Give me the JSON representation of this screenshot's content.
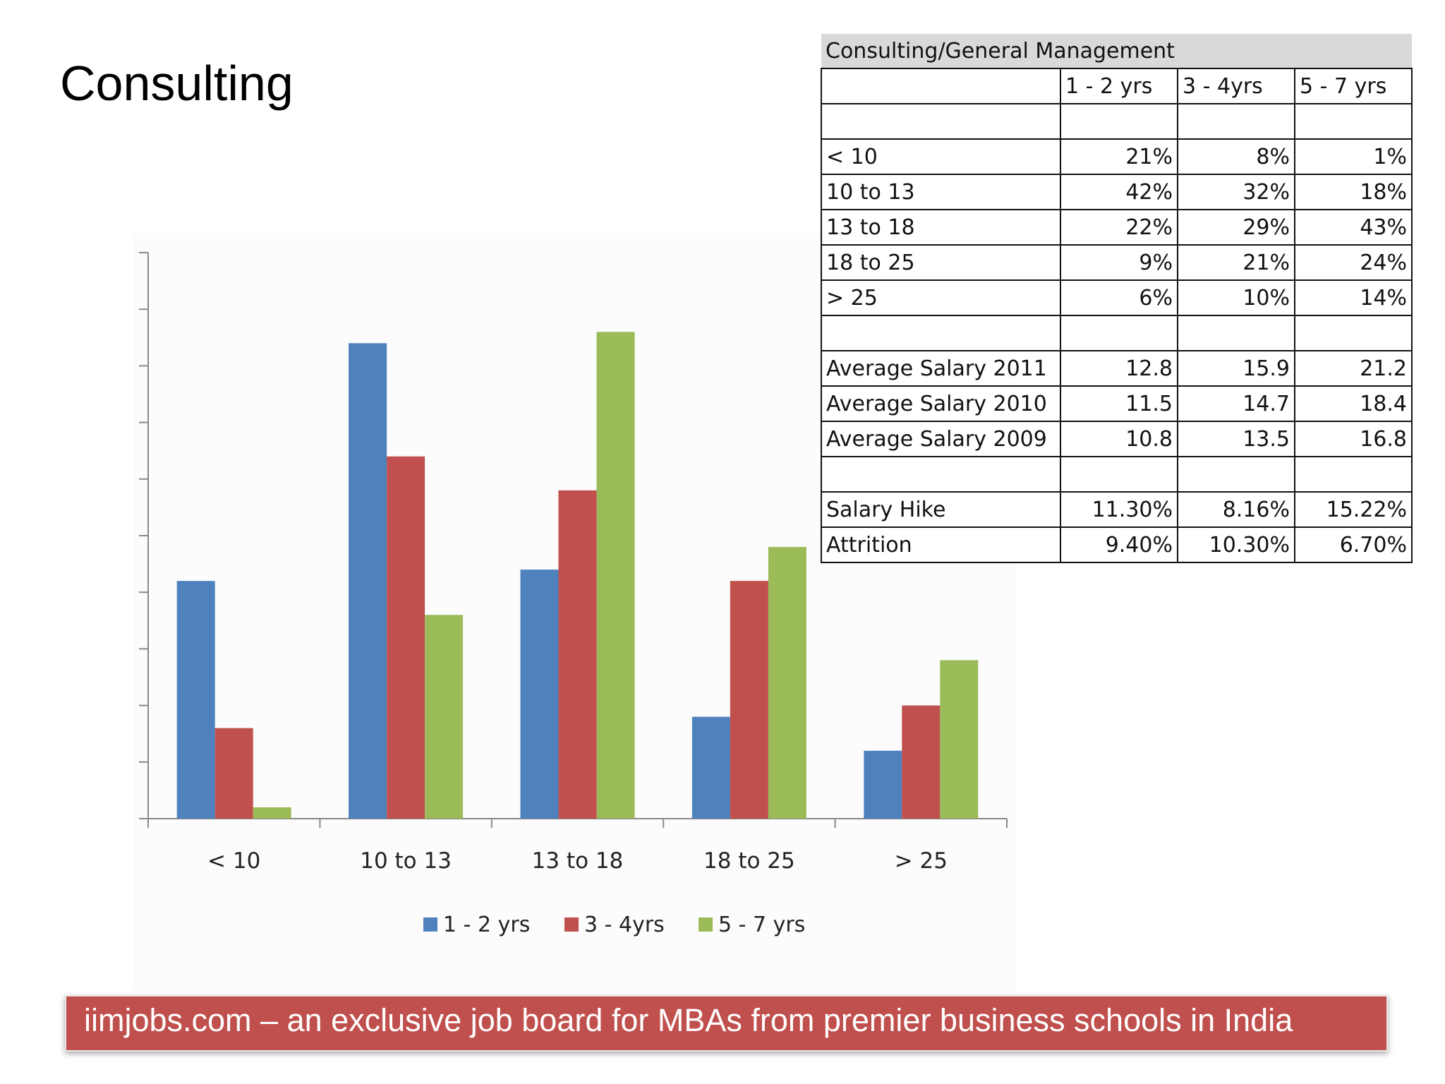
{
  "slide": {
    "title": "Consulting",
    "footer": "iimjobs.com – an exclusive job board for MBAs from premier business schools in India"
  },
  "table": {
    "title": "Consulting/General Management",
    "headers": [
      "",
      "1 - 2 yrs",
      "3 - 4yrs",
      "5 - 7 yrs"
    ],
    "rows": [
      [
        "",
        "",
        "",
        ""
      ],
      [
        "< 10",
        "21%",
        "8%",
        "1%"
      ],
      [
        "10 to 13",
        "42%",
        "32%",
        "18%"
      ],
      [
        "13 to 18",
        "22%",
        "29%",
        "43%"
      ],
      [
        "18 to 25",
        "9%",
        "21%",
        "24%"
      ],
      [
        "> 25",
        "6%",
        "10%",
        "14%"
      ],
      [
        "",
        "",
        "",
        ""
      ],
      [
        "Average Salary 2011",
        "12.8",
        "15.9",
        "21.2"
      ],
      [
        "Average Salary 2010",
        "11.5",
        "14.7",
        "18.4"
      ],
      [
        "Average Salary 2009",
        "10.8",
        "13.5",
        "16.8"
      ],
      [
        "",
        "",
        "",
        ""
      ],
      [
        "Salary Hike",
        "11.30%",
        "8.16%",
        "15.22%"
      ],
      [
        "Attrition",
        "9.40%",
        "10.30%",
        "6.70%"
      ]
    ]
  },
  "chart_data": {
    "type": "bar",
    "categories": [
      "< 10",
      "10 to 13",
      "13 to 18",
      "18 to 25",
      "> 25"
    ],
    "series": [
      {
        "name": "1 - 2 yrs",
        "values": [
          21,
          42,
          22,
          9,
          6
        ],
        "color": "#4f81bd"
      },
      {
        "name": "3 - 4yrs",
        "values": [
          8,
          32,
          29,
          21,
          10
        ],
        "color": "#c0504d"
      },
      {
        "name": "5 - 7 yrs",
        "values": [
          1,
          18,
          43,
          24,
          14
        ],
        "color": "#9bbb59"
      }
    ],
    "ylim": [
      0,
      50
    ],
    "yticks": [
      "0%",
      "5%",
      "10%",
      "15%",
      "20%",
      "25%",
      "30%",
      "35%",
      "40%",
      "45%",
      "50%"
    ],
    "legend_position": "bottom",
    "grid": false,
    "xlabel": "",
    "ylabel": ""
  },
  "colors": {
    "banner": "#c0504d",
    "table_title_bg": "#d9d9d9"
  }
}
